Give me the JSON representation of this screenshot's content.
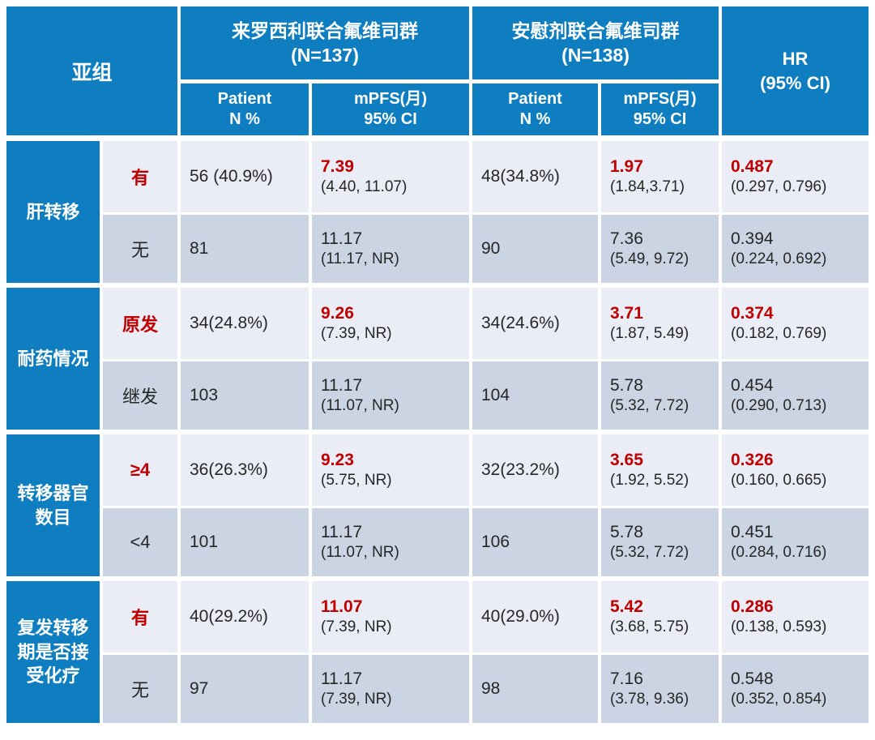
{
  "colors": {
    "blue": "#0e7ec1",
    "light": "#eaedf5",
    "dark": "#cbd4e2",
    "red": "#c00000",
    "text": "#262626"
  },
  "header": {
    "subgroup_label": "亚组",
    "arm1_name": "来罗西利联合氟维司群",
    "arm1_n": "(N=137)",
    "arm2_name": "安慰剂联合氟维司群",
    "arm2_n": "(N=138)",
    "patient_label": "Patient",
    "patient_sub": "N %",
    "mpfs_label": "mPFS(月)",
    "mpfs_sub": "95% CI",
    "hr_label": "HR",
    "hr_ci": "(95% CI)"
  },
  "groups": [
    {
      "name": "肝转移",
      "rows": [
        {
          "sub": "有",
          "p1": "56 (40.9%)",
          "m1": "7.39",
          "m1ci": "(4.40, 11.07)",
          "p2": "48(34.8%)",
          "m2": "1.97",
          "m2ci": "(1.84,3.71)",
          "hr": "0.487",
          "hrci": "(0.297, 0.796)"
        },
        {
          "sub": "无",
          "p1": "81",
          "m1": "11.17",
          "m1ci": "(11.17, NR)",
          "p2": "90",
          "m2": "7.36",
          "m2ci": "(5.49, 9.72)",
          "hr": "0.394",
          "hrci": "(0.224, 0.692)"
        }
      ]
    },
    {
      "name": "耐药情况",
      "rows": [
        {
          "sub": "原发",
          "p1": "34(24.8%)",
          "m1": "9.26",
          "m1ci": "(7.39, NR)",
          "p2": "34(24.6%)",
          "m2": "3.71",
          "m2ci": "(1.87, 5.49)",
          "hr": "0.374",
          "hrci": "(0.182, 0.769)"
        },
        {
          "sub": "继发",
          "p1": "103",
          "m1": "11.17",
          "m1ci": "(11.07, NR)",
          "p2": "104",
          "m2": "5.78",
          "m2ci": "(5.32, 7.72)",
          "hr": "0.454",
          "hrci": "(0.290, 0.713)"
        }
      ]
    },
    {
      "name": "转移器官数目",
      "rows": [
        {
          "sub": "≥4",
          "p1": "36(26.3%)",
          "m1": "9.23",
          "m1ci": "(5.75, NR)",
          "p2": "32(23.2%)",
          "m2": "3.65",
          "m2ci": "(1.92, 5.52)",
          "hr": "0.326",
          "hrci": "(0.160, 0.665)"
        },
        {
          "sub": "<4",
          "p1": "101",
          "m1": "11.17",
          "m1ci": "(11.07, NR)",
          "p2": "106",
          "m2": "5.78",
          "m2ci": "(5.32, 7.72)",
          "hr": "0.451",
          "hrci": "(0.284, 0.716)"
        }
      ]
    },
    {
      "name": "复发转移期是否接受化疗",
      "rows": [
        {
          "sub": "有",
          "p1": "40(29.2%)",
          "m1": "11.07",
          "m1ci": "(7.39, NR)",
          "p2": "40(29.0%)",
          "m2": "5.42",
          "m2ci": "(3.68, 5.75)",
          "hr": "0.286",
          "hrci": "(0.138, 0.593)"
        },
        {
          "sub": "无",
          "p1": "97",
          "m1": "11.17",
          "m1ci": "(7.39, NR)",
          "p2": "98",
          "m2": "7.16",
          "m2ci": "(3.78, 9.36)",
          "hr": "0.548",
          "hrci": "(0.352, 0.854)"
        }
      ]
    }
  ]
}
